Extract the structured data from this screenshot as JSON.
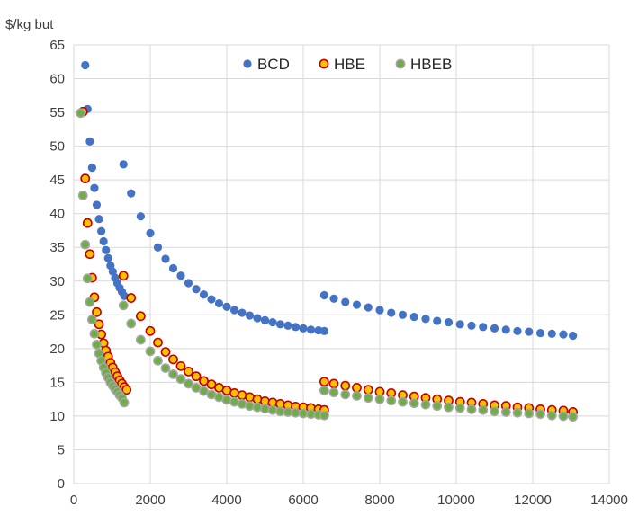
{
  "chart_data": {
    "type": "scatter",
    "title": "",
    "xlabel": "",
    "ylabel": "$/kg but",
    "xlim": [
      0,
      14000
    ],
    "ylim": [
      0,
      65
    ],
    "x_ticks": [
      "0",
      "2000",
      "4000",
      "6000",
      "8000",
      "10000",
      "12000",
      "14000"
    ],
    "y_ticks": [
      "0",
      "5",
      "10",
      "15",
      "20",
      "25",
      "30",
      "35",
      "40",
      "45",
      "50",
      "55",
      "60",
      "65"
    ],
    "grid": true,
    "legend_position": "top-center",
    "series": [
      {
        "name": "BCD",
        "color": "#4472c4",
        "points": [
          [
            300,
            62
          ],
          [
            360,
            55.5
          ],
          [
            420,
            50.7
          ],
          [
            480,
            46.8
          ],
          [
            540,
            43.8
          ],
          [
            600,
            41.3
          ],
          [
            660,
            39.2
          ],
          [
            720,
            37.4
          ],
          [
            780,
            35.9
          ],
          [
            840,
            34.6
          ],
          [
            900,
            33.4
          ],
          [
            960,
            32.3
          ],
          [
            1020,
            31.4
          ],
          [
            1080,
            30.5
          ],
          [
            1140,
            29.7
          ],
          [
            1200,
            29.0
          ],
          [
            1260,
            28.4
          ],
          [
            1320,
            27.8
          ],
          [
            1300,
            47.3
          ],
          [
            1500,
            43.0
          ],
          [
            1750,
            39.6
          ],
          [
            2000,
            37.1
          ],
          [
            2200,
            35.0
          ],
          [
            2400,
            33.3
          ],
          [
            2600,
            31.9
          ],
          [
            2800,
            30.8
          ],
          [
            3000,
            29.7
          ],
          [
            3200,
            28.8
          ],
          [
            3400,
            28.0
          ],
          [
            3600,
            27.3
          ],
          [
            3800,
            26.7
          ],
          [
            4000,
            26.2
          ],
          [
            4200,
            25.7
          ],
          [
            4400,
            25.3
          ],
          [
            4600,
            24.9
          ],
          [
            4800,
            24.5
          ],
          [
            5000,
            24.2
          ],
          [
            5200,
            23.9
          ],
          [
            5400,
            23.6
          ],
          [
            5600,
            23.4
          ],
          [
            5800,
            23.2
          ],
          [
            6000,
            23.0
          ],
          [
            6200,
            22.8
          ],
          [
            6400,
            22.7
          ],
          [
            6550,
            22.6
          ],
          [
            6550,
            27.9
          ],
          [
            6800,
            27.4
          ],
          [
            7100,
            26.9
          ],
          [
            7400,
            26.5
          ],
          [
            7700,
            26.1
          ],
          [
            8000,
            25.7
          ],
          [
            8300,
            25.3
          ],
          [
            8600,
            25.0
          ],
          [
            8900,
            24.7
          ],
          [
            9200,
            24.4
          ],
          [
            9500,
            24.1
          ],
          [
            9800,
            23.9
          ],
          [
            10100,
            23.6
          ],
          [
            10400,
            23.4
          ],
          [
            10700,
            23.2
          ],
          [
            11000,
            23.0
          ],
          [
            11300,
            22.8
          ],
          [
            11600,
            22.6
          ],
          [
            11900,
            22.5
          ],
          [
            12200,
            22.3
          ],
          [
            12500,
            22.2
          ],
          [
            12800,
            22.1
          ],
          [
            13050,
            21.9
          ]
        ]
      },
      {
        "name": "HBE",
        "color": "#c00000",
        "fill": "#ffc000",
        "points": [
          [
            240,
            55.1
          ],
          [
            300,
            45.2
          ],
          [
            360,
            38.6
          ],
          [
            420,
            34.0
          ],
          [
            480,
            30.5
          ],
          [
            540,
            27.6
          ],
          [
            600,
            25.4
          ],
          [
            660,
            23.6
          ],
          [
            720,
            22.1
          ],
          [
            780,
            20.8
          ],
          [
            840,
            19.7
          ],
          [
            900,
            18.8
          ],
          [
            960,
            17.9
          ],
          [
            1020,
            17.2
          ],
          [
            1080,
            16.5
          ],
          [
            1140,
            15.9
          ],
          [
            1200,
            15.3
          ],
          [
            1260,
            14.8
          ],
          [
            1320,
            14.3
          ],
          [
            1380,
            13.9
          ],
          [
            1300,
            30.8
          ],
          [
            1500,
            27.5
          ],
          [
            1750,
            24.8
          ],
          [
            2000,
            22.6
          ],
          [
            2200,
            20.9
          ],
          [
            2400,
            19.5
          ],
          [
            2600,
            18.4
          ],
          [
            2800,
            17.4
          ],
          [
            3000,
            16.6
          ],
          [
            3200,
            15.9
          ],
          [
            3400,
            15.2
          ],
          [
            3600,
            14.7
          ],
          [
            3800,
            14.2
          ],
          [
            4000,
            13.8
          ],
          [
            4200,
            13.4
          ],
          [
            4400,
            13.1
          ],
          [
            4600,
            12.8
          ],
          [
            4800,
            12.5
          ],
          [
            5000,
            12.2
          ],
          [
            5200,
            12.0
          ],
          [
            5400,
            11.8
          ],
          [
            5600,
            11.6
          ],
          [
            5800,
            11.4
          ],
          [
            6000,
            11.3
          ],
          [
            6200,
            11.2
          ],
          [
            6400,
            11.0
          ],
          [
            6550,
            10.9
          ],
          [
            6550,
            15.1
          ],
          [
            6800,
            14.8
          ],
          [
            7100,
            14.5
          ],
          [
            7400,
            14.2
          ],
          [
            7700,
            13.9
          ],
          [
            8000,
            13.6
          ],
          [
            8300,
            13.4
          ],
          [
            8600,
            13.1
          ],
          [
            8900,
            12.9
          ],
          [
            9200,
            12.7
          ],
          [
            9500,
            12.5
          ],
          [
            9800,
            12.3
          ],
          [
            10100,
            12.1
          ],
          [
            10400,
            12.0
          ],
          [
            10700,
            11.8
          ],
          [
            11000,
            11.6
          ],
          [
            11300,
            11.5
          ],
          [
            11600,
            11.3
          ],
          [
            11900,
            11.2
          ],
          [
            12200,
            11.0
          ],
          [
            12500,
            10.9
          ],
          [
            12800,
            10.8
          ],
          [
            13050,
            10.6
          ]
        ]
      },
      {
        "name": "HBEB",
        "color": "#a5a5a5",
        "fill": "#70ad47",
        "points": [
          [
            180,
            54.9
          ],
          [
            240,
            42.7
          ],
          [
            300,
            35.4
          ],
          [
            360,
            30.4
          ],
          [
            420,
            26.9
          ],
          [
            480,
            24.3
          ],
          [
            540,
            22.2
          ],
          [
            600,
            20.6
          ],
          [
            660,
            19.3
          ],
          [
            720,
            18.2
          ],
          [
            780,
            17.2
          ],
          [
            840,
            16.4
          ],
          [
            900,
            15.7
          ],
          [
            960,
            15.0
          ],
          [
            1020,
            14.5
          ],
          [
            1080,
            14.0
          ],
          [
            1140,
            13.6
          ],
          [
            1200,
            13.1
          ],
          [
            1260,
            12.7
          ],
          [
            1320,
            12.0
          ],
          [
            1300,
            26.4
          ],
          [
            1500,
            23.7
          ],
          [
            1750,
            21.3
          ],
          [
            2000,
            19.6
          ],
          [
            2200,
            18.2
          ],
          [
            2400,
            17.1
          ],
          [
            2600,
            16.2
          ],
          [
            2800,
            15.5
          ],
          [
            3000,
            14.8
          ],
          [
            3200,
            14.2
          ],
          [
            3400,
            13.7
          ],
          [
            3600,
            13.2
          ],
          [
            3800,
            12.8
          ],
          [
            4000,
            12.4
          ],
          [
            4200,
            12.1
          ],
          [
            4400,
            11.8
          ],
          [
            4600,
            11.5
          ],
          [
            4800,
            11.3
          ],
          [
            5000,
            11.1
          ],
          [
            5200,
            10.9
          ],
          [
            5400,
            10.7
          ],
          [
            5600,
            10.6
          ],
          [
            5800,
            10.5
          ],
          [
            6000,
            10.4
          ],
          [
            6200,
            10.3
          ],
          [
            6400,
            10.2
          ],
          [
            6550,
            10.1
          ],
          [
            6550,
            13.8
          ],
          [
            6800,
            13.5
          ],
          [
            7100,
            13.2
          ],
          [
            7400,
            13.0
          ],
          [
            7700,
            12.7
          ],
          [
            8000,
            12.5
          ],
          [
            8300,
            12.3
          ],
          [
            8600,
            12.1
          ],
          [
            8900,
            11.9
          ],
          [
            9200,
            11.7
          ],
          [
            9500,
            11.5
          ],
          [
            9800,
            11.3
          ],
          [
            10100,
            11.2
          ],
          [
            10400,
            11.0
          ],
          [
            10700,
            10.9
          ],
          [
            11000,
            10.7
          ],
          [
            11300,
            10.6
          ],
          [
            11600,
            10.5
          ],
          [
            11900,
            10.4
          ],
          [
            12200,
            10.3
          ],
          [
            12500,
            10.1
          ],
          [
            12800,
            10.0
          ],
          [
            13050,
            9.9
          ]
        ]
      }
    ]
  }
}
